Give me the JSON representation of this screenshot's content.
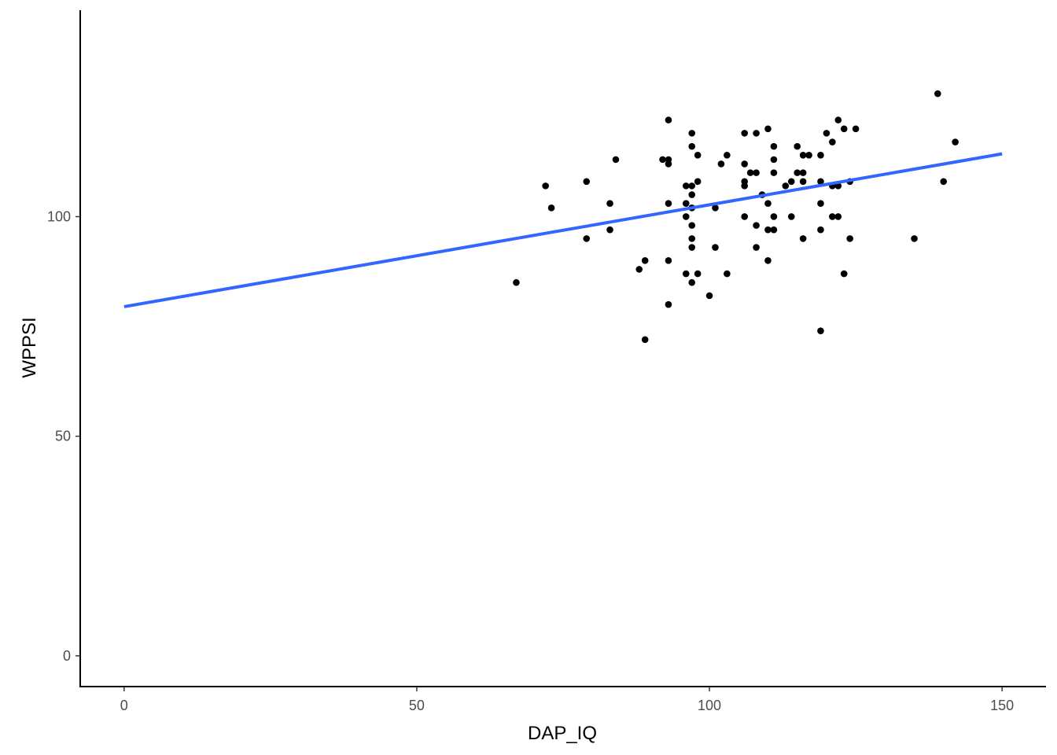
{
  "chart_data": {
    "type": "scatter",
    "title": "",
    "xlabel": "DAP_IQ",
    "ylabel": "WPPSI",
    "xlim": [
      -7.5,
      157.5
    ],
    "ylim": [
      -7,
      147
    ],
    "x_ticks": [
      0,
      50,
      100,
      150
    ],
    "y_ticks": [
      0,
      50,
      100
    ],
    "grid": false,
    "point_color": "#000000",
    "line_color": "#3366ff",
    "regression_line": {
      "x": [
        0,
        150
      ],
      "y": [
        79.5,
        114.3
      ]
    },
    "points": [
      [
        67,
        85
      ],
      [
        72,
        107
      ],
      [
        73,
        102
      ],
      [
        79,
        108
      ],
      [
        79,
        95
      ],
      [
        83,
        103
      ],
      [
        83,
        97
      ],
      [
        84,
        113
      ],
      [
        88,
        88
      ],
      [
        89,
        90
      ],
      [
        89,
        72
      ],
      [
        92,
        113
      ],
      [
        93,
        122
      ],
      [
        93,
        113
      ],
      [
        93,
        112
      ],
      [
        93,
        103
      ],
      [
        93,
        90
      ],
      [
        93,
        80
      ],
      [
        96,
        107
      ],
      [
        96,
        103
      ],
      [
        96,
        100
      ],
      [
        96,
        87
      ],
      [
        97,
        119
      ],
      [
        97,
        116
      ],
      [
        97,
        107
      ],
      [
        97,
        105
      ],
      [
        97,
        102
      ],
      [
        97,
        98
      ],
      [
        97,
        95
      ],
      [
        97,
        93
      ],
      [
        97,
        85
      ],
      [
        98,
        114
      ],
      [
        98,
        108
      ],
      [
        98,
        87
      ],
      [
        100,
        82
      ],
      [
        101,
        102
      ],
      [
        101,
        93
      ],
      [
        102,
        112
      ],
      [
        103,
        114
      ],
      [
        103,
        87
      ],
      [
        106,
        119
      ],
      [
        106,
        112
      ],
      [
        106,
        108
      ],
      [
        106,
        107
      ],
      [
        106,
        100
      ],
      [
        107,
        110
      ],
      [
        108,
        119
      ],
      [
        108,
        110
      ],
      [
        108,
        98
      ],
      [
        108,
        93
      ],
      [
        109,
        105
      ],
      [
        110,
        120
      ],
      [
        110,
        103
      ],
      [
        110,
        97
      ],
      [
        110,
        90
      ],
      [
        111,
        116
      ],
      [
        111,
        113
      ],
      [
        111,
        110
      ],
      [
        111,
        100
      ],
      [
        111,
        97
      ],
      [
        113,
        107
      ],
      [
        114,
        108
      ],
      [
        114,
        100
      ],
      [
        115,
        116
      ],
      [
        115,
        110
      ],
      [
        116,
        114
      ],
      [
        116,
        110
      ],
      [
        116,
        108
      ],
      [
        116,
        95
      ],
      [
        117,
        114
      ],
      [
        119,
        114
      ],
      [
        119,
        108
      ],
      [
        119,
        103
      ],
      [
        119,
        97
      ],
      [
        119,
        74
      ],
      [
        120,
        119
      ],
      [
        121,
        117
      ],
      [
        121,
        107
      ],
      [
        121,
        100
      ],
      [
        122,
        122
      ],
      [
        122,
        107
      ],
      [
        122,
        100
      ],
      [
        123,
        120
      ],
      [
        123,
        87
      ],
      [
        124,
        108
      ],
      [
        124,
        95
      ],
      [
        125,
        120
      ],
      [
        135,
        95
      ],
      [
        139,
        128
      ],
      [
        140,
        108
      ],
      [
        142,
        117
      ]
    ]
  }
}
